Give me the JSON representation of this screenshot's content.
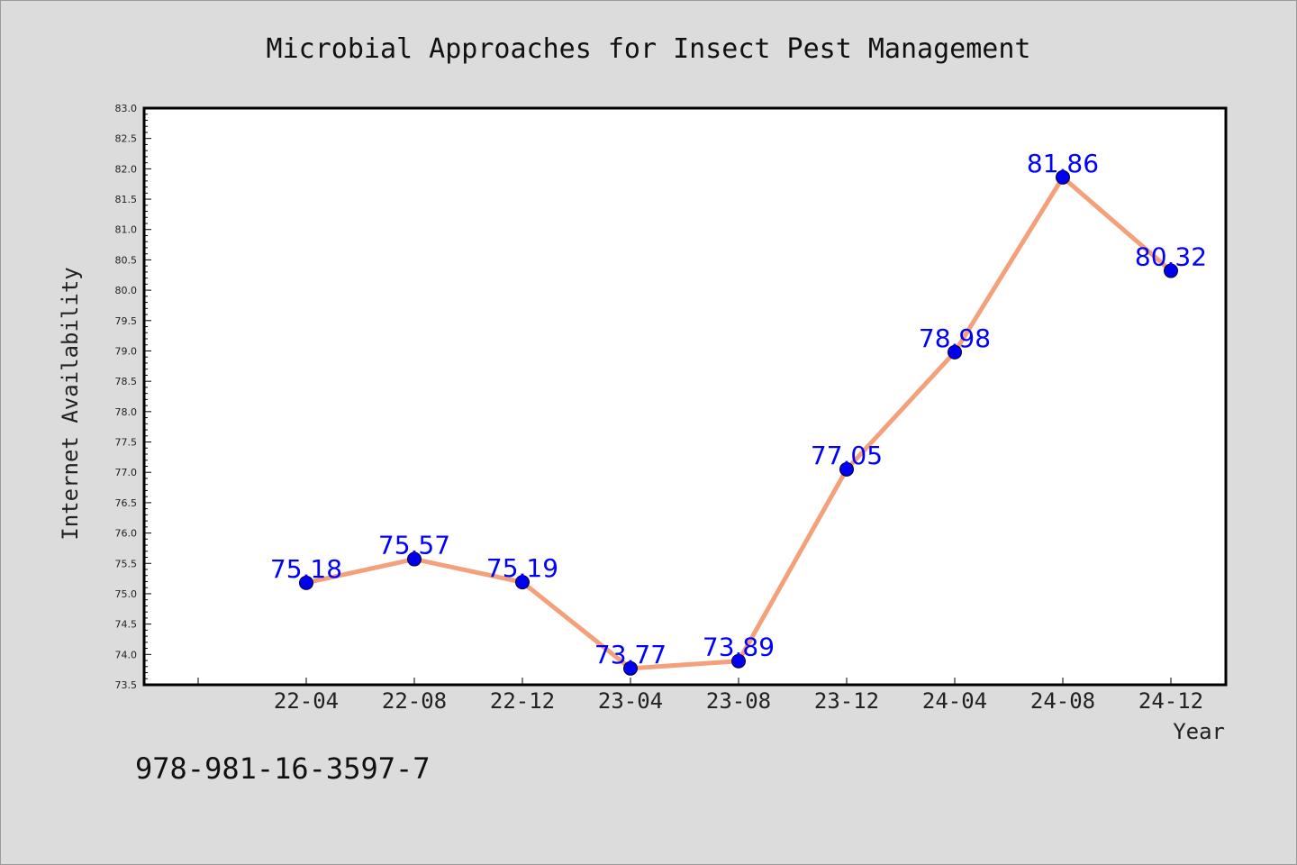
{
  "chart_data": {
    "type": "line",
    "title": "Microbial Approaches for Insect Pest Management",
    "xlabel": "Year",
    "ylabel": "Internet Availability",
    "categories": [
      "22-04",
      "22-08",
      "22-12",
      "23-04",
      "23-08",
      "23-12",
      "24-04",
      "24-08",
      "24-12"
    ],
    "series": [
      {
        "values": [
          75.18,
          75.57,
          75.19,
          73.77,
          73.89,
          77.05,
          78.98,
          81.86,
          80.32
        ]
      }
    ],
    "ylim": [
      73.5,
      83.0
    ],
    "yticks": [
      "73.5",
      "74.0",
      "74.5",
      "75.0",
      "75.5",
      "76.0",
      "76.5",
      "77.0",
      "77.5",
      "78.0",
      "78.5",
      "79.0",
      "79.5",
      "80.0",
      "80.5",
      "81.0",
      "81.5",
      "82.0",
      "82.5",
      "83.0"
    ],
    "grid": false,
    "line_color": "#f4a07a",
    "marker_color": "#0000ee",
    "label_color": "#0000ff"
  },
  "footer": {
    "isbn": "978-981-16-3597-7"
  }
}
